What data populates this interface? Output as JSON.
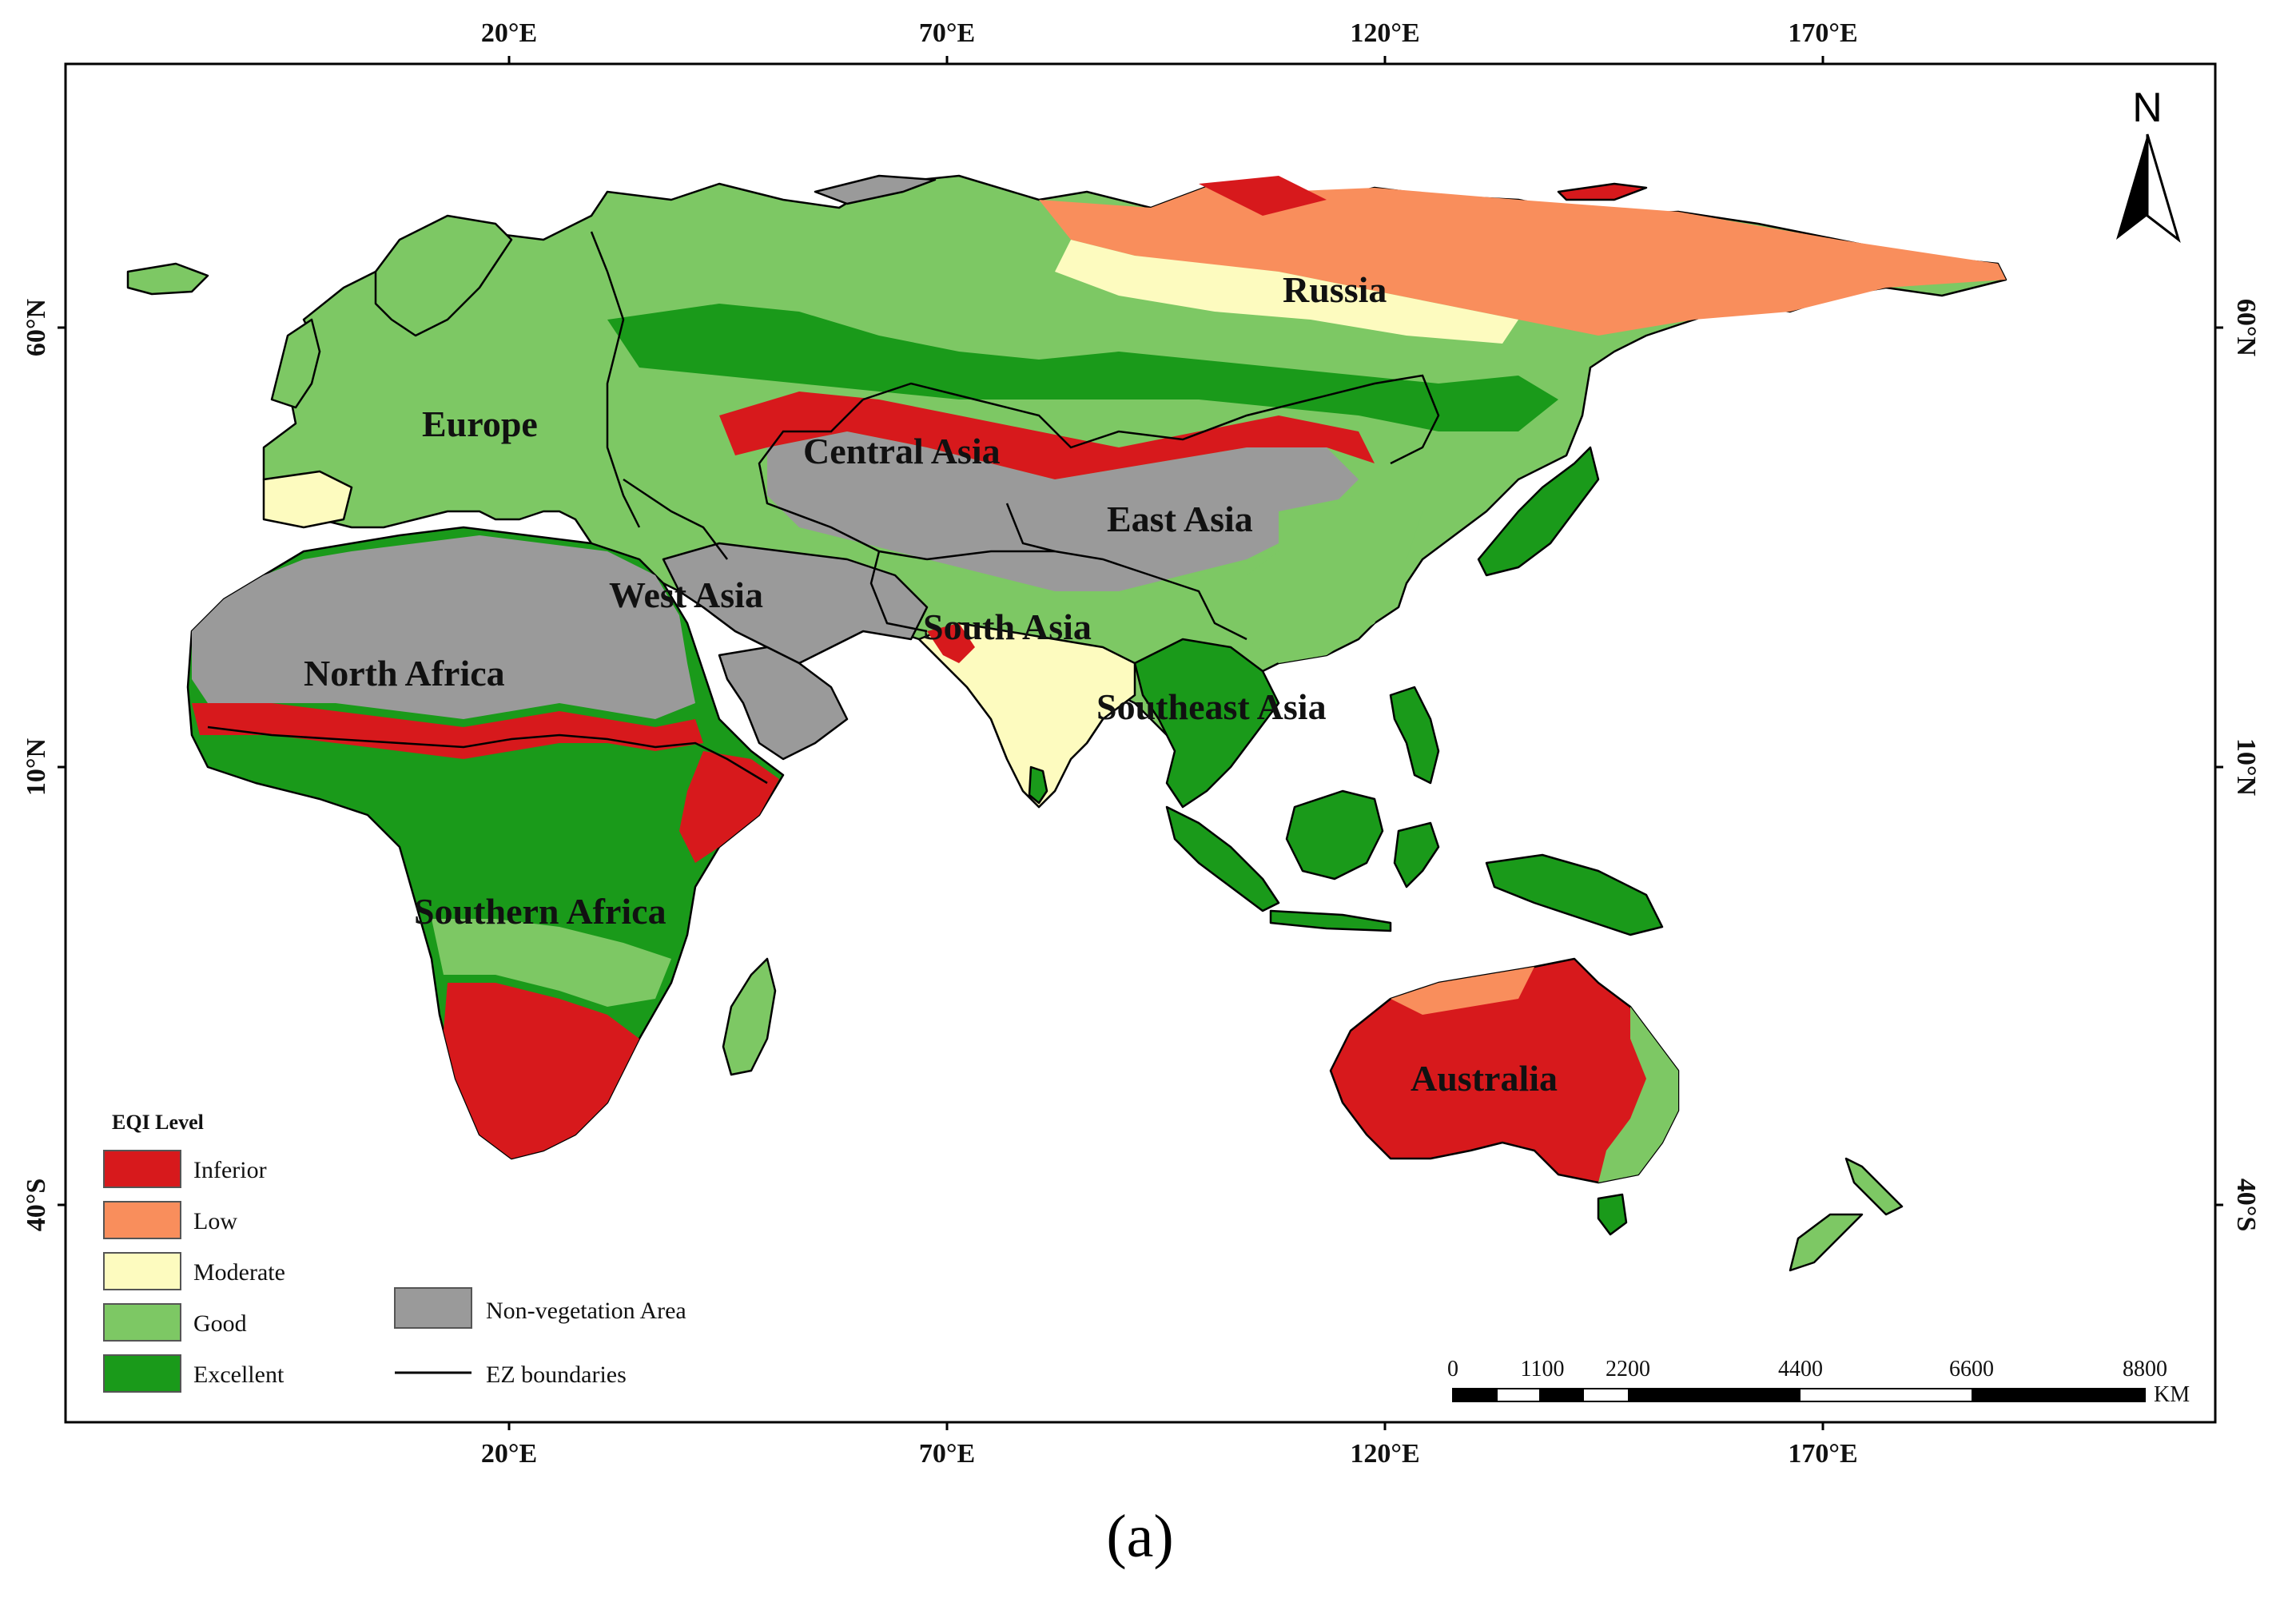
{
  "colors": {
    "inferior": "#d7191c",
    "low": "#f98e5c",
    "moderate": "#fdfbbf",
    "good": "#7dc864",
    "excellent": "#1a9a1a",
    "non_vegetation": "#9a9a9a",
    "boundary": "#000000",
    "ocean": "#ffffff"
  },
  "top_ticks": [
    "20°E",
    "70°E",
    "120°E",
    "170°E"
  ],
  "bottom_ticks": [
    "20°E",
    "70°E",
    "120°E",
    "170°E"
  ],
  "left_ticks": [
    "60°N",
    "10°N",
    "40°S"
  ],
  "right_ticks": [
    "60°N",
    "10°N",
    "40°S"
  ],
  "regions": [
    {
      "label": "Russia"
    },
    {
      "label": "Europe"
    },
    {
      "label": "Central Asia"
    },
    {
      "label": "East Asia"
    },
    {
      "label": "West Asia"
    },
    {
      "label": "South Asia"
    },
    {
      "label": "North Africa"
    },
    {
      "label": "Southeast Asia"
    },
    {
      "label": "Southern Africa"
    },
    {
      "label": "Australia"
    }
  ],
  "north_arrow": {
    "label": "N",
    "icon": "north-arrow-icon"
  },
  "legend": {
    "title": "EQI  Level",
    "items": [
      {
        "label": "Inferior",
        "color": "#d7191c"
      },
      {
        "label": "Low",
        "color": "#f98e5c"
      },
      {
        "label": "Moderate",
        "color": "#fdfbbf"
      },
      {
        "label": "Good",
        "color": "#7dc864"
      },
      {
        "label": "Excellent",
        "color": "#1a9a1a"
      }
    ],
    "non_vegetation_label": "Non-vegetation Area",
    "boundary_label": "EZ boundaries"
  },
  "scale_bar": {
    "ticks": [
      "0",
      "1100",
      "2200",
      "4400",
      "6600",
      "8800"
    ],
    "unit": "KM"
  },
  "caption": "(a)"
}
